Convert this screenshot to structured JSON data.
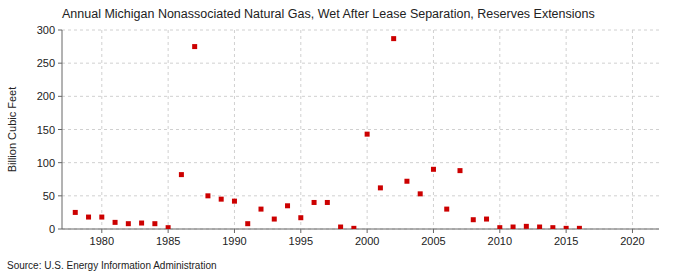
{
  "chart_data": {
    "type": "scatter",
    "title": "Annual Michigan Nonassociated Natural Gas, Wet After Lease Separation, Reserves Extensions",
    "ylabel": "Billion Cubic Feet",
    "source": "Source: U.S. Energy Information Administration",
    "x": [
      1978,
      1979,
      1980,
      1981,
      1982,
      1983,
      1984,
      1985,
      1986,
      1987,
      1988,
      1989,
      1990,
      1991,
      1992,
      1993,
      1994,
      1995,
      1996,
      1997,
      1998,
      1999,
      2000,
      2001,
      2002,
      2003,
      2004,
      2005,
      2006,
      2007,
      2008,
      2009,
      2010,
      2011,
      2012,
      2013,
      2014,
      2015,
      2016
    ],
    "values": [
      25,
      18,
      18,
      10,
      8,
      9,
      8,
      2,
      82,
      275,
      50,
      45,
      42,
      8,
      30,
      15,
      35,
      17,
      40,
      40,
      3,
      1,
      143,
      62,
      287,
      72,
      53,
      90,
      30,
      88,
      14,
      15,
      2,
      3,
      4,
      3,
      2,
      1,
      1
    ],
    "color": "#cc0000",
    "marker": "square",
    "xlim": [
      1977,
      2022
    ],
    "xticks": [
      1980,
      1985,
      1990,
      1995,
      2000,
      2005,
      2010,
      2015,
      2020
    ],
    "ylim": [
      0,
      300
    ],
    "yticks": [
      0,
      50,
      100,
      150,
      200,
      250,
      300
    ],
    "grid": true
  }
}
